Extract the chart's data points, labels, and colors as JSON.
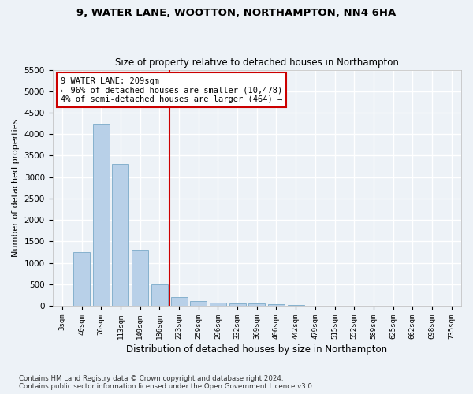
{
  "title1": "9, WATER LANE, WOOTTON, NORTHAMPTON, NN4 6HA",
  "title2": "Size of property relative to detached houses in Northampton",
  "xlabel": "Distribution of detached houses by size in Northampton",
  "ylabel": "Number of detached properties",
  "bar_color": "#b8d0e8",
  "bar_edge_color": "#7aaac8",
  "categories": [
    "3sqm",
    "40sqm",
    "76sqm",
    "113sqm",
    "149sqm",
    "186sqm",
    "223sqm",
    "259sqm",
    "296sqm",
    "332sqm",
    "369sqm",
    "406sqm",
    "442sqm",
    "479sqm",
    "515sqm",
    "552sqm",
    "589sqm",
    "625sqm",
    "662sqm",
    "698sqm",
    "735sqm"
  ],
  "values": [
    0,
    1250,
    4250,
    3300,
    1300,
    500,
    200,
    110,
    75,
    55,
    50,
    30,
    20,
    10,
    5,
    5,
    5,
    5,
    5,
    5,
    5
  ],
  "vline_index": 5.5,
  "vline_color": "#cc0000",
  "annotation_text": "9 WATER LANE: 209sqm\n← 96% of detached houses are smaller (10,478)\n4% of semi-detached houses are larger (464) →",
  "annotation_box_color": "#cc0000",
  "ylim": [
    0,
    5500
  ],
  "yticks": [
    0,
    500,
    1000,
    1500,
    2000,
    2500,
    3000,
    3500,
    4000,
    4500,
    5000,
    5500
  ],
  "footnote": "Contains HM Land Registry data © Crown copyright and database right 2024.\nContains public sector information licensed under the Open Government Licence v3.0.",
  "background_color": "#edf2f7",
  "grid_color": "#ffffff",
  "title1_fontsize": 9.5,
  "title2_fontsize": 8.5
}
